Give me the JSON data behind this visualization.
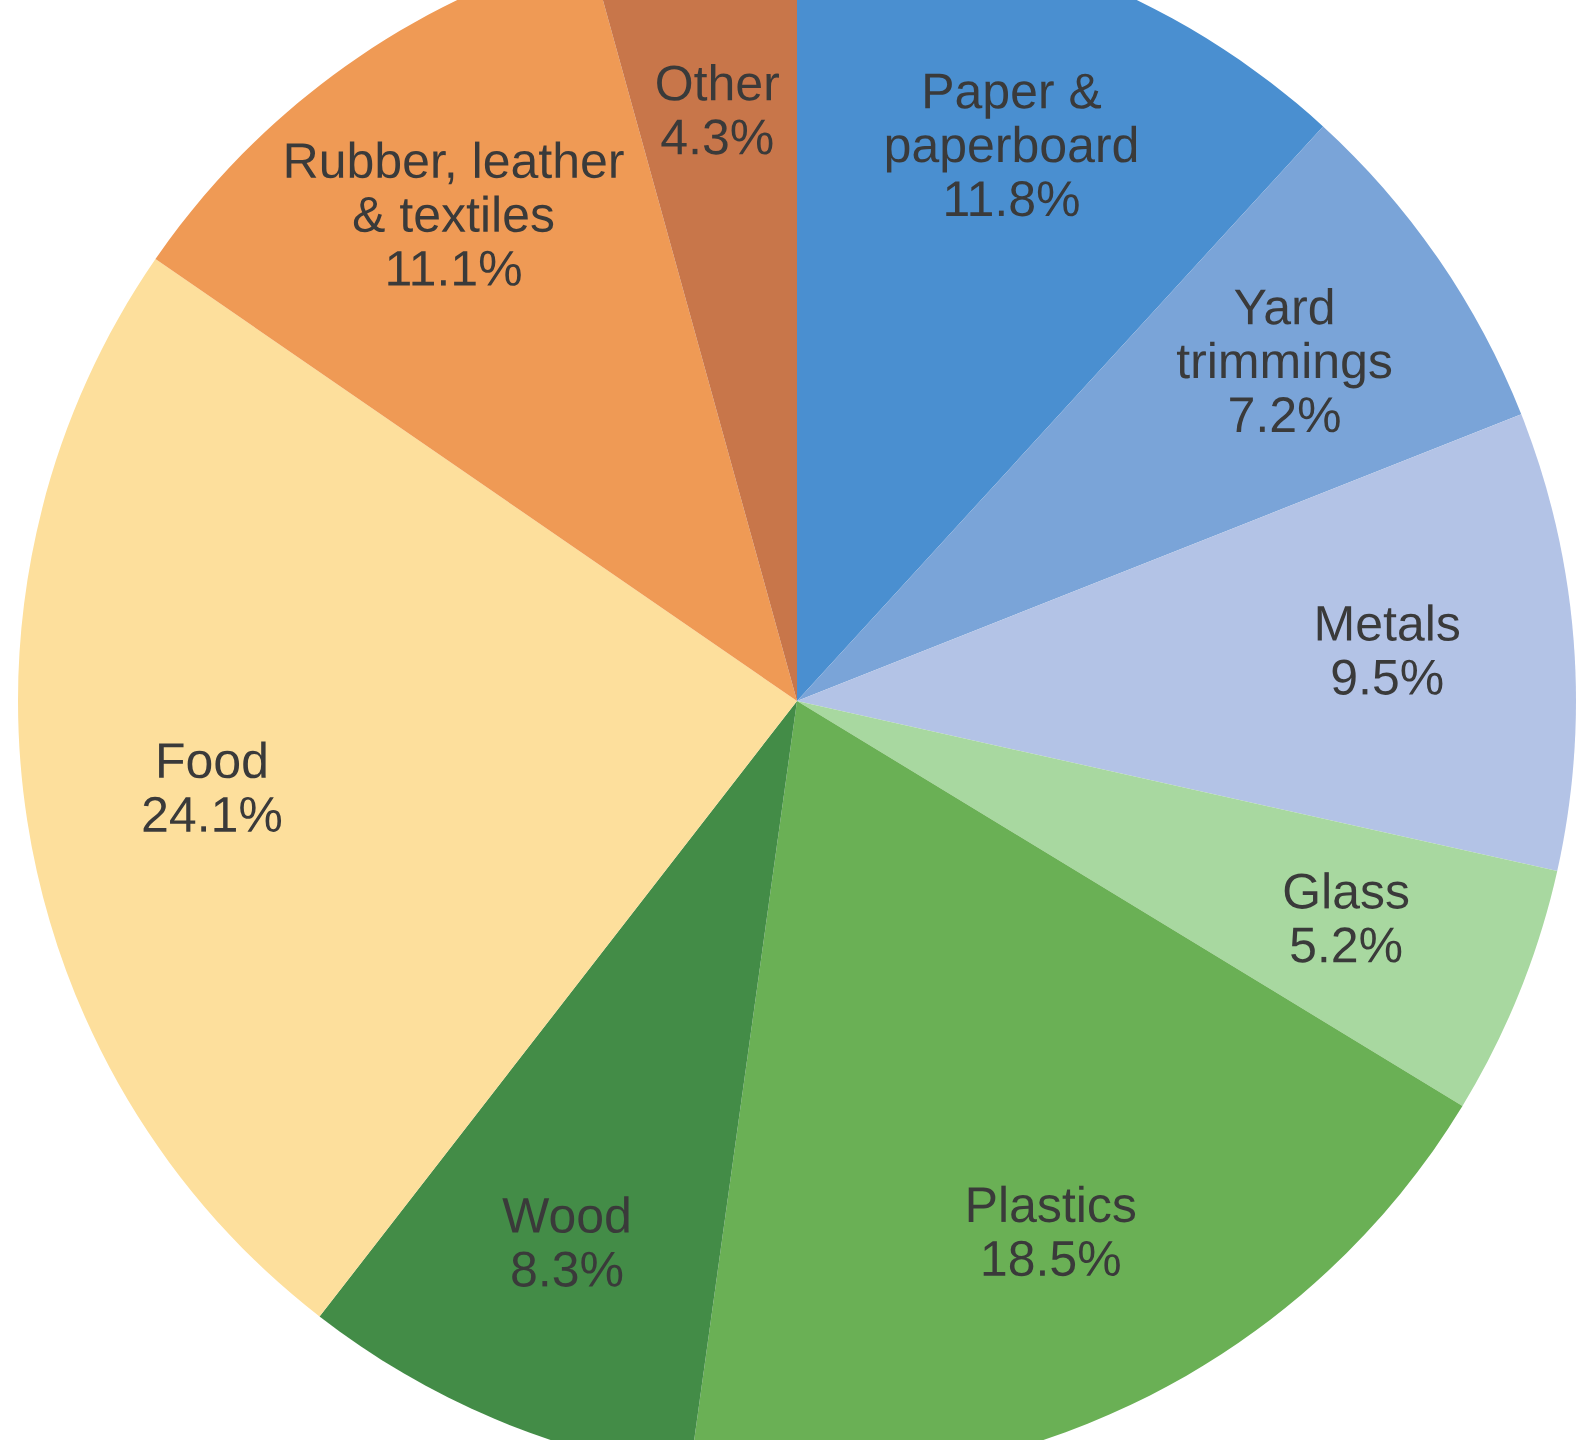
{
  "chart_data": {
    "type": "pie",
    "categories": [
      "Paper &\npaperboard",
      "Yard\ntrimmings",
      "Metals",
      "Glass",
      "Plastics",
      "Wood",
      "Food",
      "Rubber, leather\n& textiles",
      "Other"
    ],
    "values": [
      11.8,
      7.2,
      9.5,
      5.2,
      18.5,
      8.3,
      24.1,
      11.1,
      4.3
    ],
    "value_labels": [
      "11.8%",
      "7.2%",
      "9.5%",
      "5.2%",
      "18.5%",
      "8.3%",
      "24.1%",
      "11.1%",
      "4.3%"
    ],
    "colors": [
      "#4a8fd0",
      "#7aa4d8",
      "#b3c3e6",
      "#a8d8a0",
      "#6ab055",
      "#438c47",
      "#fddf9c",
      "#ef9a55",
      "#c8764a"
    ],
    "legend": false
  }
}
